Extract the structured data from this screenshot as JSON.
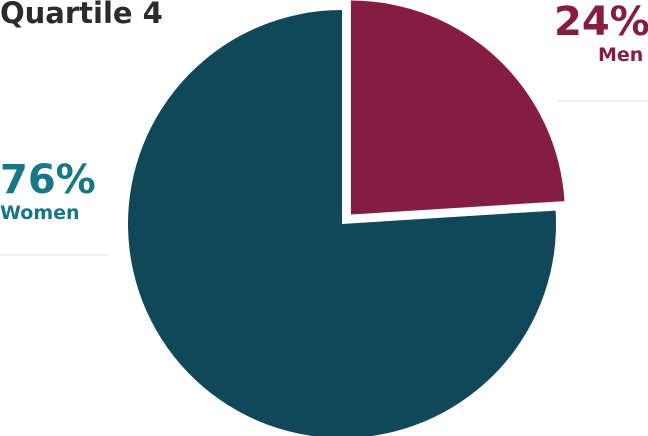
{
  "chart_data": {
    "type": "pie",
    "title": "Quartile 4",
    "slices": [
      {
        "label": "Women",
        "percent_label": "76%",
        "value": 76,
        "color": "#10485a",
        "label_color": "#177786",
        "exploded": false
      },
      {
        "label": "Men",
        "percent_label": "24%",
        "value": 24,
        "color": "#851c42",
        "label_color": "#851c42",
        "exploded": true
      }
    ]
  }
}
